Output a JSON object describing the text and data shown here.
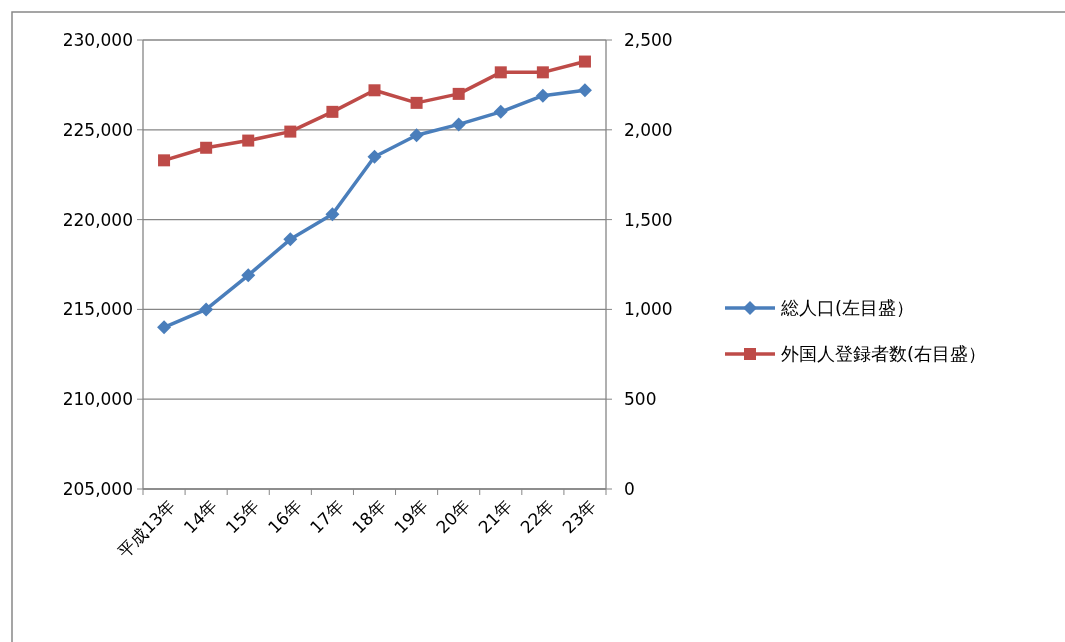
{
  "chart_data": {
    "type": "line",
    "categories": [
      "平成13年",
      "14年",
      "15年",
      "16年",
      "17年",
      "18年",
      "19年",
      "20年",
      "21年",
      "22年",
      "23年"
    ],
    "series": [
      {
        "name": "総人口(左目盛）",
        "color": "#4a7ebb",
        "marker": "diamond",
        "values": [
          214000,
          215000,
          216900,
          218900,
          220300,
          223500,
          224700,
          225300,
          226000,
          226900,
          227200
        ]
      },
      {
        "name": "外国人登録者数(右目盛）",
        "color": "#be4b48",
        "marker": "square",
        "axis": "y2",
        "values": [
          1830,
          1900,
          1940,
          1990,
          2100,
          2220,
          2150,
          2200,
          2320,
          2320,
          2380
        ]
      }
    ],
    "ylim": [
      205000,
      230000
    ],
    "yticks": [
      {
        "value": 205000,
        "label": "205,000"
      },
      {
        "value": 210000,
        "label": "210,000"
      },
      {
        "value": 215000,
        "label": "215,000"
      },
      {
        "value": 220000,
        "label": "220,000"
      },
      {
        "value": 225000,
        "label": "225,000"
      },
      {
        "value": 230000,
        "label": "230,000"
      }
    ],
    "y2lim": [
      0,
      2500
    ],
    "y2ticks": [
      0,
      500,
      {
        "value": 1000,
        "label": "1,000"
      },
      {
        "value": 1500,
        "label": "1,500"
      },
      {
        "value": 2000,
        "label": "2,000"
      },
      {
        "value": 2500,
        "label": "2,500"
      }
    ],
    "grid": "y",
    "legend": "right"
  }
}
